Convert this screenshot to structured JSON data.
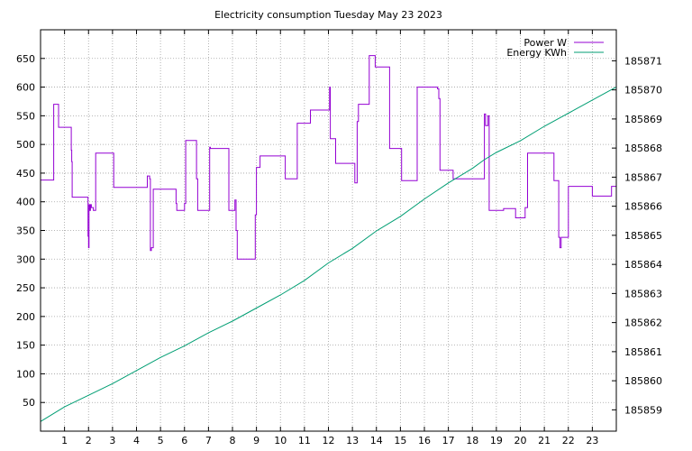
{
  "chart_data": {
    "type": "line",
    "title": "Electricity consumption Tuesday May 23 2023",
    "xlabel": "",
    "ylabel": "",
    "y2label": "",
    "xlim": [
      0,
      24
    ],
    "ylim": [
      0,
      700
    ],
    "y2lim": [
      185858.267,
      185872.067
    ],
    "grid": true,
    "legend_position": "top-right",
    "x_ticks": [
      1,
      2,
      3,
      4,
      5,
      6,
      7,
      8,
      9,
      10,
      11,
      12,
      13,
      14,
      15,
      16,
      17,
      18,
      19,
      20,
      21,
      22,
      23
    ],
    "y_ticks": [
      50,
      100,
      150,
      200,
      250,
      300,
      350,
      400,
      450,
      500,
      550,
      600,
      650
    ],
    "y2_ticks": [
      185859,
      185860,
      185861,
      185862,
      185863,
      185864,
      185865,
      185866,
      185867,
      185868,
      185869,
      185870,
      185871
    ],
    "series": [
      {
        "name": "Power W",
        "color": "#9400d3",
        "axis": "y",
        "step": true,
        "x": [
          0,
          0.55,
          0.75,
          1.28,
          1.3,
          1.32,
          1.38,
          1.98,
          2.0,
          2.02,
          2.05,
          2.08,
          2.12,
          2.2,
          2.3,
          2.35,
          2.42,
          3.05,
          4.2,
          4.45,
          4.55,
          4.58,
          4.62,
          4.7,
          5.55,
          5.65,
          5.68,
          6.0,
          6.05,
          6.1,
          6.5,
          6.55,
          6.6,
          7.05,
          7.08,
          7.85,
          7.92,
          8.1,
          8.15,
          8.2,
          8.95,
          9.0,
          9.15,
          10.15,
          10.2,
          10.55,
          10.7,
          11.25,
          12.0,
          12.05,
          12.08,
          12.3,
          12.95,
          13.1,
          13.15,
          13.2,
          13.25,
          13.7,
          13.95,
          14.55,
          15.05,
          15.2,
          15.7,
          16.55,
          16.6,
          16.65,
          17.2,
          17.6,
          18.5,
          18.55,
          18.6,
          18.65,
          18.7,
          19.3,
          19.7,
          19.8,
          20.0,
          20.2,
          20.3,
          21.2,
          21.4,
          21.6,
          21.65,
          21.7,
          22.0,
          22.05,
          22.6,
          23.0,
          23.25,
          23.35,
          23.75,
          23.8,
          24
        ],
        "values": [
          438,
          570,
          530,
          490,
          470,
          408,
          408,
          340,
          320,
          395,
          385,
          395,
          390,
          385,
          485,
          485,
          485,
          425,
          425,
          445,
          440,
          315,
          320,
          422,
          422,
          397,
          385,
          397,
          507,
          507,
          440,
          385,
          385,
          495,
          493,
          385,
          385,
          403,
          350,
          300,
          377,
          460,
          480,
          480,
          440,
          440,
          537,
          560,
          560,
          600,
          510,
          467,
          467,
          433,
          433,
          540,
          570,
          655,
          635,
          493,
          437,
          437,
          600,
          597,
          580,
          455,
          440,
          440,
          553,
          533,
          533,
          550,
          385,
          388,
          388,
          372,
          372,
          390,
          485,
          485,
          437,
          338,
          320,
          338,
          427,
          427,
          427,
          410,
          410,
          410,
          410,
          427,
          427
        ]
      },
      {
        "name": "Energy KWh",
        "color": "#009e73",
        "axis": "y2",
        "step": false,
        "x": [
          0,
          1,
          2,
          3,
          4,
          5,
          6,
          7,
          8,
          9,
          10,
          11,
          12,
          13,
          14,
          15,
          16,
          17,
          18,
          18.5,
          19,
          20,
          21,
          22,
          23,
          24
        ],
        "values": [
          185858.6,
          185859.1,
          185859.5,
          185859.9,
          185860.35,
          185860.8,
          185861.2,
          185861.65,
          185862.05,
          185862.5,
          185862.95,
          185863.45,
          185864.05,
          185864.55,
          185865.15,
          185865.65,
          185866.25,
          185866.8,
          185867.3,
          185867.6,
          185867.85,
          185868.25,
          185868.75,
          185869.2,
          185869.65,
          185870.1
        ]
      }
    ]
  }
}
